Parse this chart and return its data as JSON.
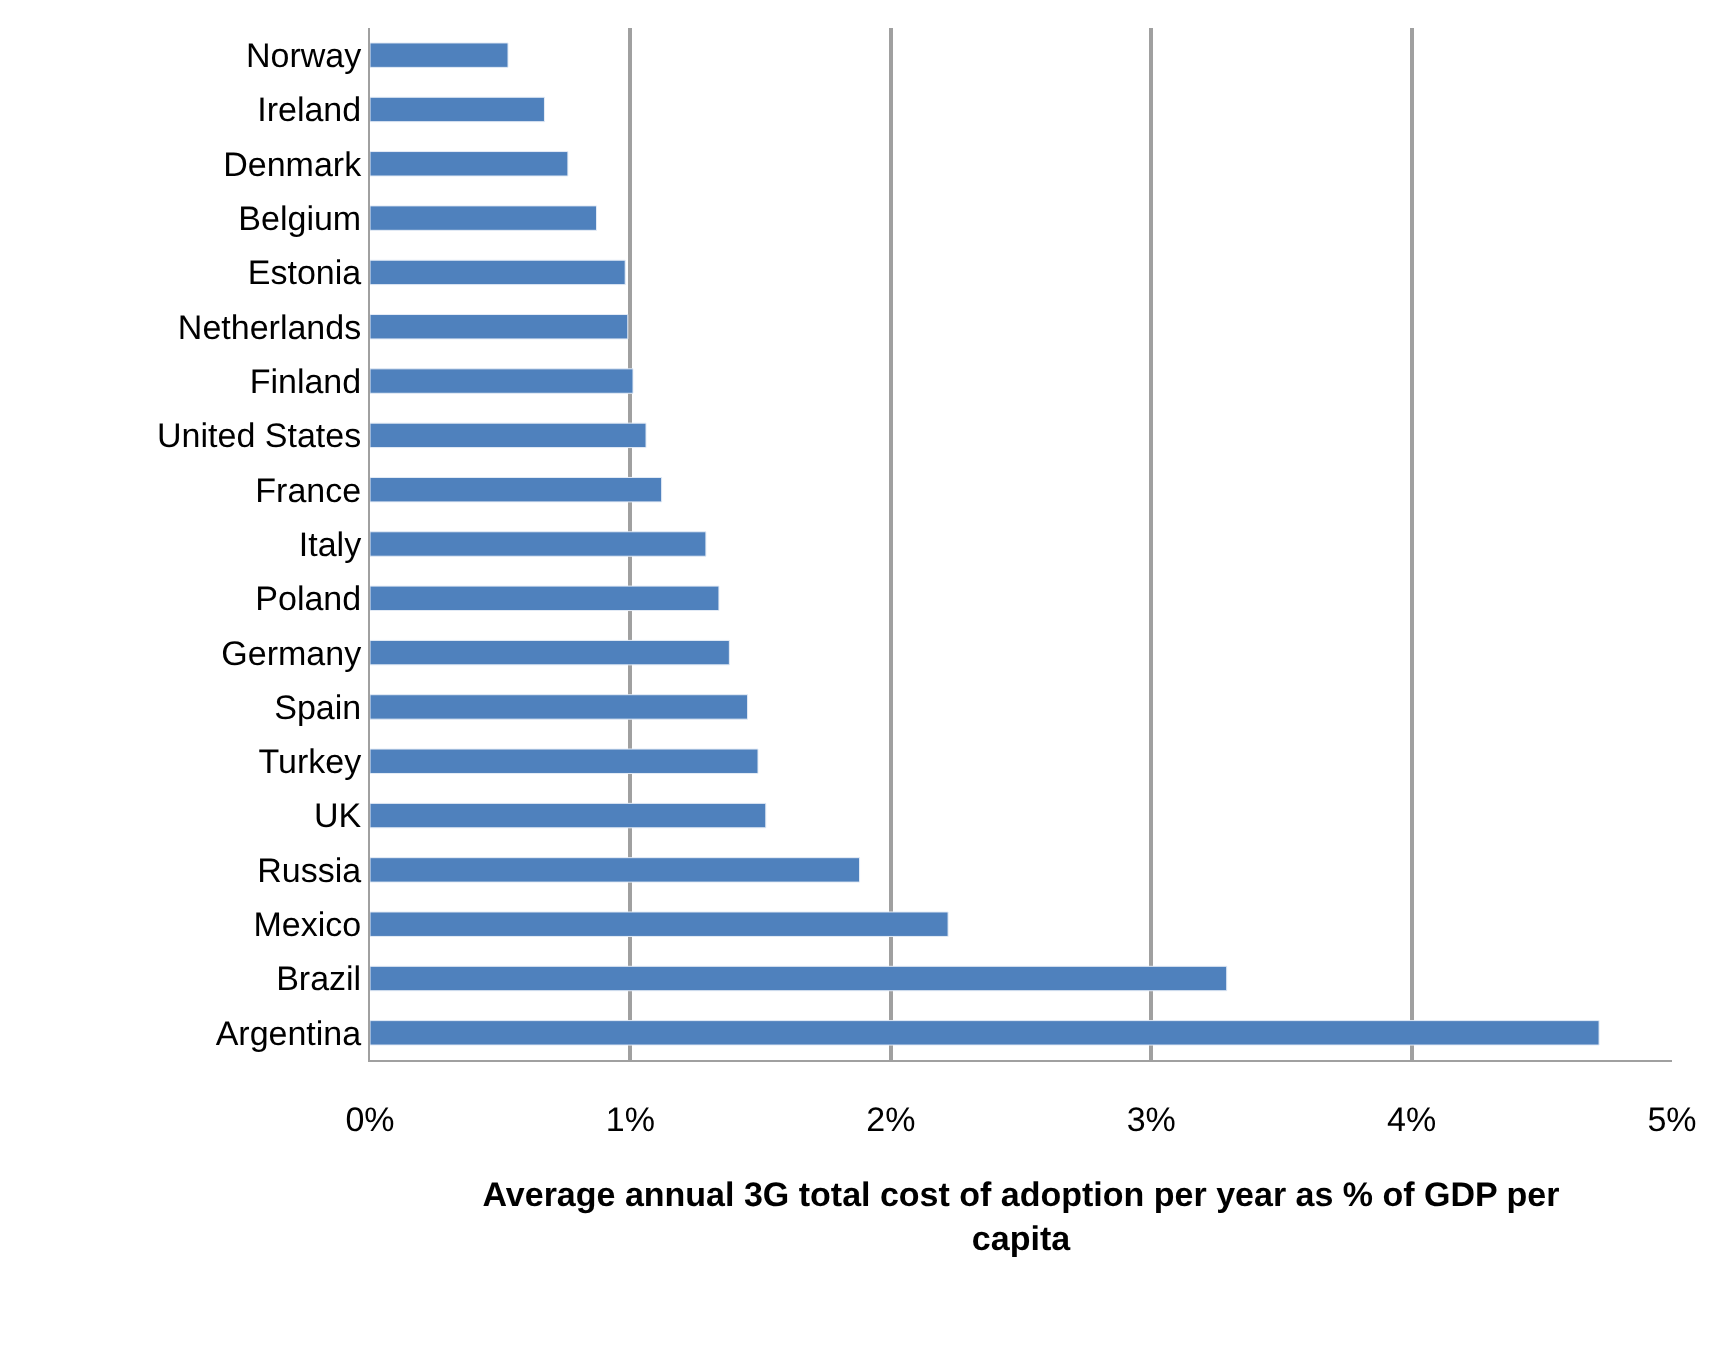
{
  "chart_data": {
    "type": "bar",
    "orientation": "horizontal",
    "xlabel": "Average annual 3G total cost of adoption per year as % of GDP per capita",
    "categories": [
      "Norway",
      "Ireland",
      "Denmark",
      "Belgium",
      "Estonia",
      "Netherlands",
      "Finland",
      "United States",
      "France",
      "Italy",
      "Poland",
      "Germany",
      "Spain",
      "Turkey",
      "UK",
      "Russia",
      "Mexico",
      "Brazil",
      "Argentina"
    ],
    "values": [
      0.53,
      0.67,
      0.76,
      0.87,
      0.98,
      0.99,
      1.01,
      1.06,
      1.12,
      1.29,
      1.34,
      1.38,
      1.45,
      1.49,
      1.52,
      1.88,
      2.22,
      3.29,
      4.72
    ],
    "color": "#4f81bd",
    "xlim": [
      0,
      5
    ],
    "xticks": [
      {
        "value": 0,
        "label": "0%"
      },
      {
        "value": 1,
        "label": "1%"
      },
      {
        "value": 2,
        "label": "2%"
      },
      {
        "value": 3,
        "label": "3%"
      },
      {
        "value": 4,
        "label": "4%"
      },
      {
        "value": 5,
        "label": "5%"
      }
    ],
    "grid": "x"
  }
}
